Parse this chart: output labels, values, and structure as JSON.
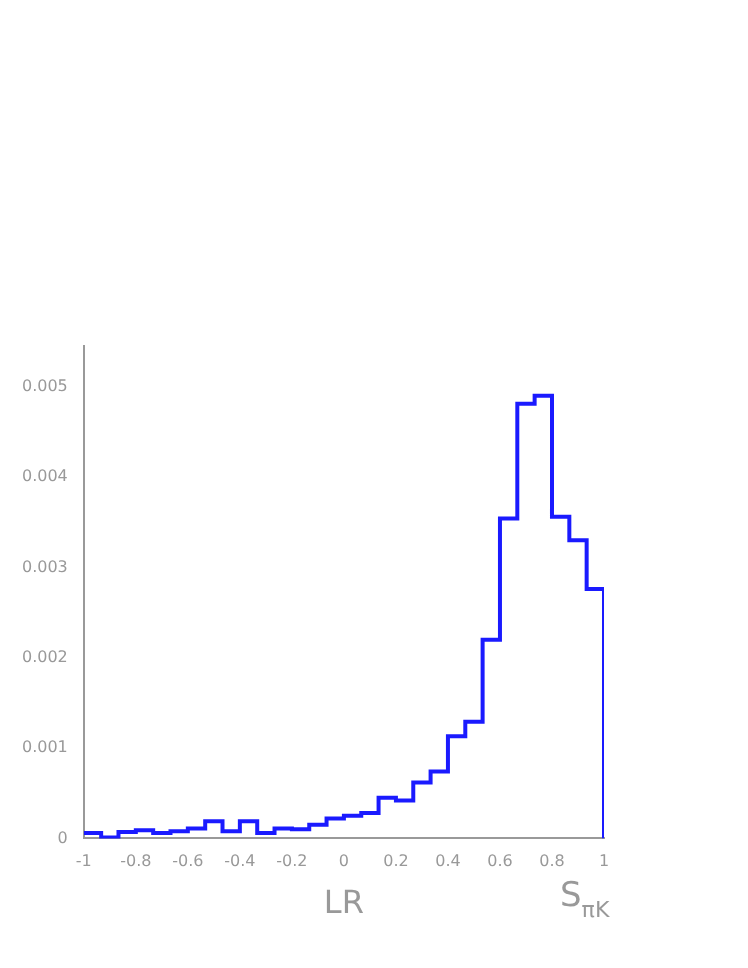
{
  "chart_data": {
    "type": "histogram",
    "xlabel": "LR",
    "annotations": [
      "S$_{πK}$"
    ],
    "color": "#1a1aff",
    "bins": [
      -1,
      -0.9333,
      -0.8667,
      -0.8,
      -0.7333,
      -0.6667,
      -0.6,
      -0.5333,
      -0.4667,
      -0.4,
      -0.3333,
      -0.2667,
      -0.2,
      -0.1333,
      -0.0667,
      0,
      0.0667,
      0.1333,
      0.2,
      0.2667,
      0.3333,
      0.4,
      0.4667,
      0.5333,
      0.6,
      0.6667,
      0.7333,
      0.8,
      0.8667,
      0.9333,
      1
    ],
    "values": [
      6e-05,
      1e-05,
      7e-05,
      9e-05,
      6e-05,
      8e-05,
      0.00011,
      0.00019,
      8e-05,
      0.00019,
      6e-05,
      0.00011,
      0.0001,
      0.00015,
      0.00022,
      0.00025,
      0.00028,
      0.00045,
      0.00042,
      0.00062,
      0.00074,
      0.00113,
      0.00129,
      0.0022,
      0.00354,
      0.00481,
      0.0049,
      0.00356,
      0.0033,
      0.00276
    ],
    "xlim": [
      -1,
      1
    ],
    "xticks": [
      -1,
      -0.8,
      -0.6,
      -0.4,
      -0.2,
      0,
      0.2,
      0.4,
      0.6,
      0.8,
      1
    ],
    "ylim": [
      0,
      0.00545
    ],
    "yticks": [
      0,
      0.001,
      0.002,
      0.003,
      0.004,
      0.005
    ],
    "grid": false,
    "legend": false
  }
}
